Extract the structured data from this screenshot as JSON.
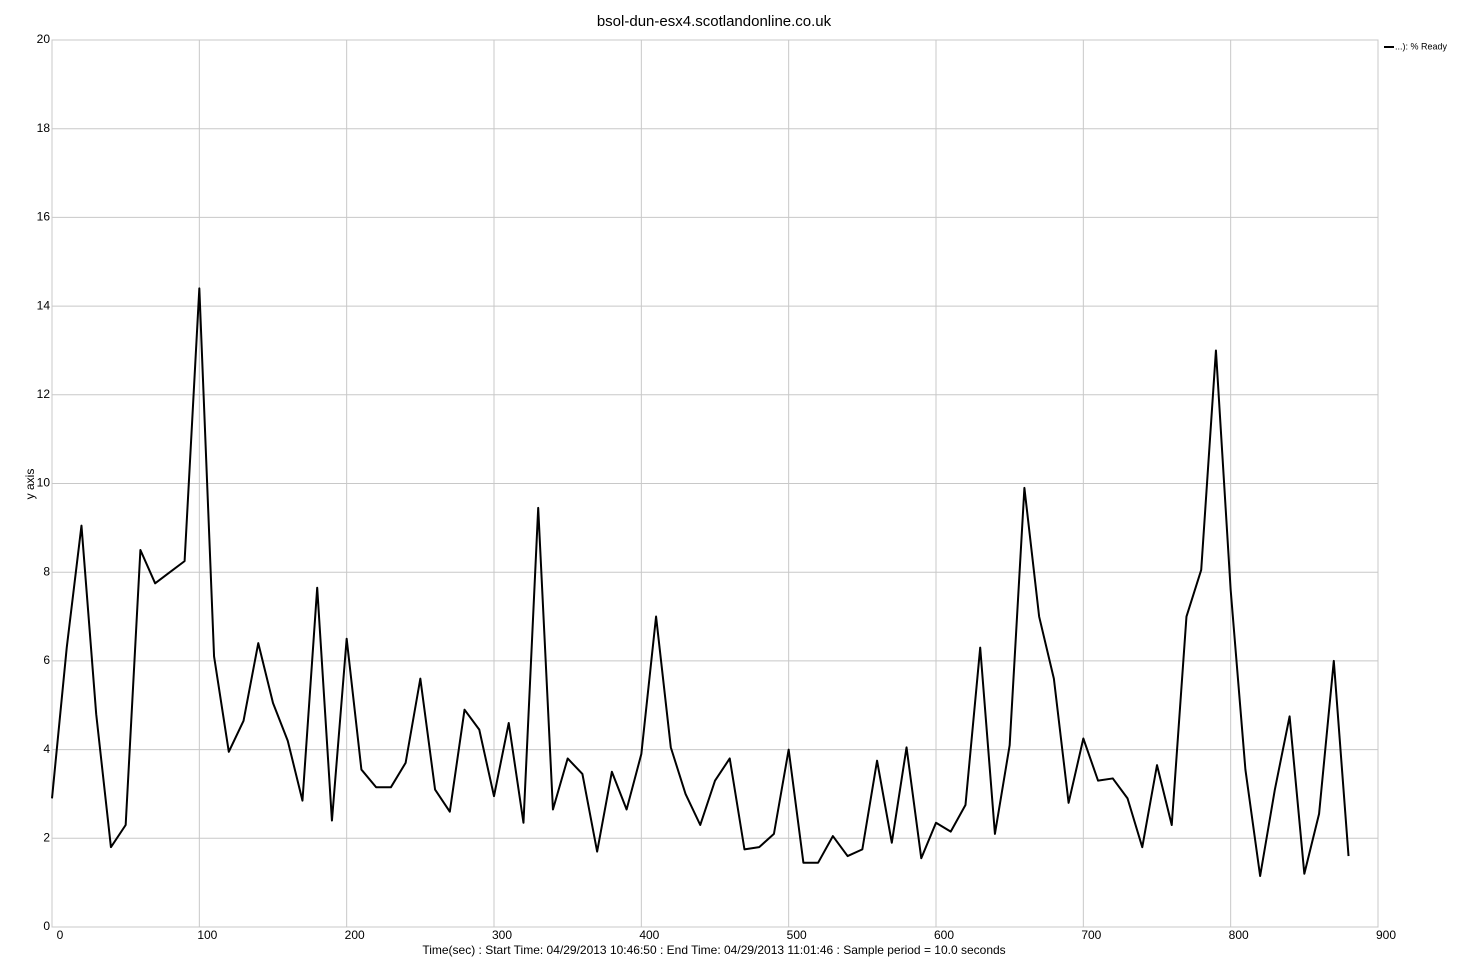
{
  "chart_data": {
    "type": "line",
    "title": "bsol-dun-esx4.scotlandonline.co.uk",
    "x_label": "Time(sec) : Start Time: 04/29/2013 10:46:50  :  End Time: 04/29/2013 11:01:46 : Sample period = 10.0 seconds",
    "y_label": "y axis",
    "x": [
      0,
      10,
      20,
      30,
      40,
      50,
      60,
      70,
      80,
      90,
      100,
      110,
      120,
      130,
      140,
      150,
      160,
      170,
      180,
      190,
      200,
      210,
      220,
      230,
      240,
      250,
      260,
      270,
      280,
      290,
      300,
      310,
      320,
      330,
      340,
      350,
      360,
      370,
      380,
      390,
      400,
      410,
      420,
      430,
      440,
      450,
      460,
      470,
      480,
      490,
      500,
      510,
      520,
      530,
      540,
      550,
      560,
      570,
      580,
      590,
      600,
      610,
      620,
      630,
      640,
      650,
      660,
      670,
      680,
      690,
      700,
      710,
      720,
      730,
      740,
      750,
      760,
      770,
      780,
      790,
      800,
      810,
      820,
      830,
      840,
      850,
      860,
      870,
      880
    ],
    "series": [
      {
        "name": "...): % Ready",
        "color": "#000000",
        "values": [
          2.9,
          6.3,
          9.05,
          4.8,
          1.8,
          2.3,
          8.5,
          7.75,
          8.0,
          8.25,
          14.4,
          6.1,
          3.95,
          4.65,
          6.4,
          5.05,
          4.2,
          2.85,
          7.65,
          2.4,
          6.5,
          3.55,
          3.15,
          3.15,
          3.7,
          5.6,
          3.1,
          2.6,
          4.9,
          4.45,
          2.95,
          4.6,
          2.35,
          9.45,
          2.65,
          3.8,
          3.45,
          1.7,
          3.5,
          2.65,
          3.9,
          7.0,
          4.05,
          3.0,
          2.3,
          3.3,
          3.8,
          1.75,
          1.8,
          2.1,
          4.0,
          1.45,
          1.45,
          2.05,
          1.6,
          1.75,
          3.75,
          1.9,
          4.05,
          1.55,
          2.35,
          2.15,
          2.75,
          6.3,
          2.1,
          4.1,
          9.9,
          7.0,
          5.6,
          2.8,
          4.25,
          3.3,
          3.35,
          2.9,
          1.8,
          3.65,
          2.3,
          7.0,
          8.05,
          13.0,
          7.6,
          3.55,
          1.15,
          3.1,
          4.75,
          1.2,
          2.55,
          6.0,
          1.6
        ]
      }
    ],
    "xlim": [
      0,
      900
    ],
    "xticks": [
      0,
      100,
      200,
      300,
      400,
      500,
      600,
      700,
      800,
      900
    ],
    "ylim": [
      0,
      20
    ],
    "yticks": [
      0,
      2,
      4,
      6,
      8,
      10,
      12,
      14,
      16,
      18,
      20
    ],
    "grid": true,
    "legend": "top-right"
  }
}
